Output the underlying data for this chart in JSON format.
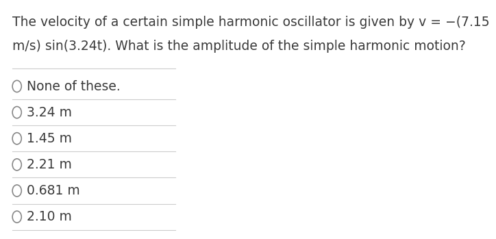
{
  "question_line1": "The velocity of a certain simple harmonic oscillator is given by v = −(7.15",
  "question_line2": "m/s) sin(3.24t). What is the amplitude of the simple harmonic motion?",
  "choices": [
    "None of these.",
    "3.24 m",
    "1.45 m",
    "2.21 m",
    "0.681 m",
    "2.10 m"
  ],
  "bg_color": "#ffffff",
  "text_color": "#3a3a3a",
  "line_color": "#cccccc",
  "question_fontsize": 13.5,
  "choice_fontsize": 13.5,
  "circle_color": "#888888"
}
